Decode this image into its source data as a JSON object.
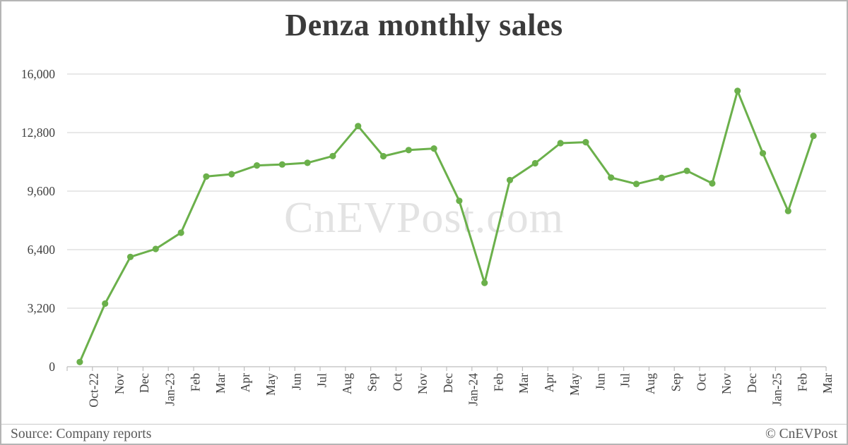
{
  "title": "Denza monthly sales",
  "watermark": "CnEVPost.com",
  "footer": {
    "source": "Source: Company reports",
    "credit": "© CnEVPost"
  },
  "colors": {
    "line": "#6bb04b",
    "marker": "#6bb04b",
    "gridline": "#d9d9d9",
    "axis": "#bdbdbd",
    "tick_text": "#404040",
    "title_text": "#3b3b3b",
    "watermark_text": "#e3e3e3",
    "footer_text": "#595959"
  },
  "chart_data": {
    "type": "line",
    "title": "Denza monthly sales",
    "xlabel": "",
    "ylabel": "",
    "ylim": [
      0,
      16000
    ],
    "ytick_interval": 3200,
    "ytick_labels": [
      "0",
      "3,200",
      "6,400",
      "9,600",
      "12,800",
      "16,000"
    ],
    "grid": "horizontal",
    "legend": "none",
    "marker": "circle",
    "categories": [
      "Oct-22",
      "Nov",
      "Dec",
      "Jan-23",
      "Feb",
      "Mar",
      "Apr",
      "May",
      "Jun",
      "Jul",
      "Aug",
      "Sep",
      "Oct",
      "Nov",
      "Dec",
      "Jan-24",
      "Feb",
      "Mar",
      "Apr",
      "May",
      "Jun",
      "Jul",
      "Aug",
      "Sep",
      "Oct",
      "Nov",
      "Dec",
      "Jan-25",
      "Feb",
      "Mar"
    ],
    "series": [
      {
        "name": "Denza monthly sales",
        "values": [
          258,
          3451,
          6002,
          6439,
          7325,
          10398,
          10526,
          11005,
          11058,
          11146,
          11515,
          13156,
          11508,
          11843,
          11929,
          9068,
          4583,
          10203,
          11122,
          12223,
          12275,
          10340,
          9989,
          10323,
          10712,
          10023,
          15078,
          11670,
          8513,
          12620
        ]
      }
    ]
  }
}
